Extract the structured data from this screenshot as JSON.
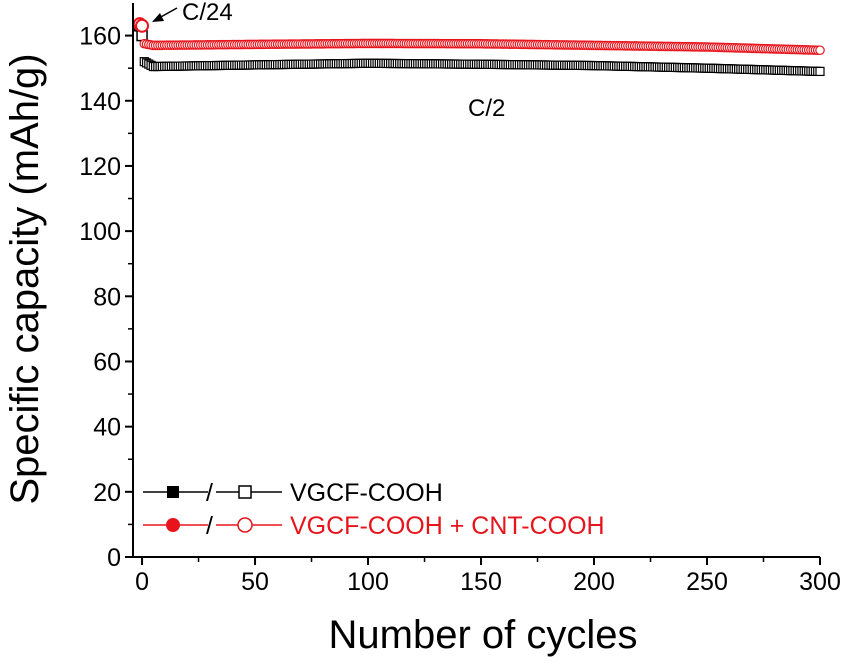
{
  "chart_data": {
    "type": "scatter",
    "xlabel": "Number of cycles",
    "ylabel": "Specific capacity (mAh/g)",
    "xlim": [
      -4,
      300
    ],
    "ylim": [
      0,
      170
    ],
    "x_ticks": [
      0,
      50,
      100,
      150,
      200,
      250,
      300
    ],
    "y_ticks": [
      0,
      20,
      40,
      60,
      80,
      100,
      120,
      140,
      160
    ],
    "grid": false,
    "legend_position": "bottom-left",
    "annotations": [
      {
        "text": "C/24",
        "x": 10,
        "y": 164
      },
      {
        "text": "C/2",
        "x": 155,
        "y": 137
      }
    ],
    "series": [
      {
        "name": "VGCF-COOH",
        "color": "#000000",
        "marker": "square",
        "formation": {
          "x": [
            -1,
            0
          ],
          "y": [
            163,
            160
          ]
        },
        "cycling_anchor_x": [
          1,
          5,
          50,
          100,
          150,
          200,
          250,
          300
        ],
        "cycling_anchor_y": [
          152,
          150.5,
          151,
          151.5,
          151.2,
          150.8,
          150,
          149
        ]
      },
      {
        "name": "VGCF-COOH + CNT-COOH",
        "color": "#e8141c",
        "marker": "circle",
        "formation": {
          "x": [
            -1,
            0
          ],
          "y": [
            163.5,
            163
          ]
        },
        "cycling_anchor_x": [
          1,
          5,
          50,
          100,
          150,
          200,
          250,
          300
        ],
        "cycling_anchor_y": [
          157.5,
          157,
          157.3,
          157.6,
          157.5,
          157,
          156.5,
          155.5
        ]
      }
    ]
  },
  "legend": {
    "separator": "/",
    "items": [
      {
        "label": "VGCF-COOH",
        "color": "#000000"
      },
      {
        "label": "VGCF-COOH + CNT-COOH",
        "color": "#e8141c"
      }
    ]
  }
}
